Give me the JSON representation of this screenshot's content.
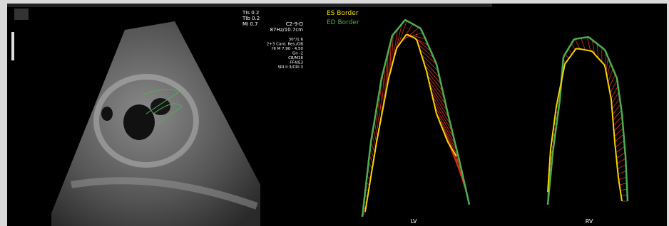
{
  "scanner": {
    "readouts": [
      "TIs 0.2",
      "TIb 0.2",
      "MI 0.7"
    ],
    "settings": [
      "C2-9-D",
      "87Hz/10.7cm",
      "30°/1.6",
      "2+3 Card. Res./OB",
      "HI M 7.90 - 4.50",
      "Gn -2",
      "C8/M16",
      "FF4/E3",
      "SRI II 3/CRI 3"
    ]
  },
  "legend": {
    "es": "ES Border",
    "ed": "ED Border"
  },
  "panels": {
    "lv": "LV",
    "rv": "RV"
  }
}
